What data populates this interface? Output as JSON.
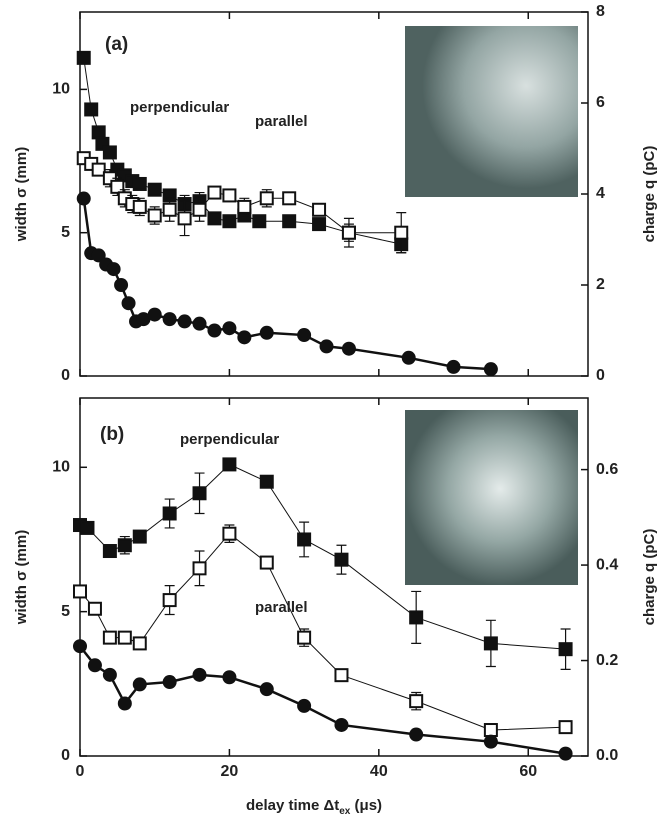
{
  "chart_data": [
    {
      "type": "line",
      "panel_label": "(a)",
      "xlim": [
        0,
        68
      ],
      "ylim": [
        0,
        12.7
      ],
      "yticks": [
        0,
        5,
        10
      ],
      "y2lim": [
        0,
        8
      ],
      "y2ticks": [
        0,
        2,
        4,
        6,
        8
      ],
      "y2label": "charge q (pC)",
      "ylabel": "width σ (mm)",
      "series": [
        {
          "name": "perpendicular",
          "color": "#111111",
          "marker": "filled-square",
          "x": [
            0.5,
            1.5,
            2.5,
            3,
            4,
            5,
            6,
            7,
            8,
            10,
            12,
            14,
            16,
            18,
            20,
            22,
            24,
            28,
            32,
            36,
            43
          ],
          "values": [
            11.1,
            9.3,
            8.5,
            8.1,
            7.8,
            7.2,
            7.0,
            6.8,
            6.7,
            6.5,
            6.3,
            6.0,
            6.1,
            5.5,
            5.4,
            5.6,
            5.4,
            5.4,
            5.3,
            5.0,
            4.6
          ],
          "errors": [
            0.2,
            0.2,
            0.2,
            0.2,
            0.2,
            0.2,
            0.2,
            0.2,
            0.2,
            0.2,
            0.2,
            0.3,
            0.3,
            0.2,
            0.2,
            0.2,
            0.2,
            0.2,
            0.2,
            0.3,
            0.3
          ]
        },
        {
          "name": "parallel",
          "color": "#111111",
          "marker": "open-square",
          "x": [
            0.5,
            1.5,
            2.5,
            4,
            5,
            6,
            7,
            8,
            10,
            12,
            14,
            16,
            18,
            20,
            22,
            25,
            28,
            32,
            36,
            43
          ],
          "values": [
            7.6,
            7.4,
            7.2,
            6.9,
            6.6,
            6.2,
            6.0,
            5.9,
            5.6,
            5.8,
            5.5,
            5.8,
            6.4,
            6.3,
            5.9,
            6.2,
            6.2,
            5.8,
            5.0,
            5.0
          ],
          "errors": [
            0.2,
            0.2,
            0.2,
            0.3,
            0.3,
            0.3,
            0.3,
            0.3,
            0.3,
            0.4,
            0.6,
            0.4,
            0.2,
            0.2,
            0.3,
            0.3,
            0.2,
            0.2,
            0.5,
            0.7
          ]
        },
        {
          "color": "#111111",
          "marker": "filled-circle",
          "axis": "y2",
          "x": [
            0.5,
            1.5,
            2.5,
            3.5,
            4.5,
            5.5,
            6.5,
            7.5,
            8.5,
            10,
            12,
            14,
            16,
            18,
            20,
            22,
            25,
            30,
            33,
            36,
            44,
            50,
            55
          ],
          "values": [
            3.9,
            2.7,
            2.65,
            2.45,
            2.35,
            2.0,
            1.6,
            1.2,
            1.25,
            1.35,
            1.25,
            1.2,
            1.15,
            1.0,
            1.05,
            0.85,
            0.95,
            0.9,
            0.65,
            0.6,
            0.4,
            0.2,
            0.15
          ]
        }
      ]
    },
    {
      "type": "line",
      "panel_label": "(b)",
      "xlim": [
        0,
        68
      ],
      "xticks": [
        0,
        20,
        40,
        60
      ],
      "xlabel": {
        "main": "delay time Δt",
        "sub": "ex",
        "unit": " (μs)"
      },
      "ylim": [
        0,
        12.4
      ],
      "yticks": [
        0,
        5,
        10
      ],
      "y2lim": [
        0,
        0.75
      ],
      "y2ticks": [
        {
          "value": 0,
          "label": "0.0"
        },
        0.2,
        0.4,
        0.6
      ],
      "y2label": "charge q (pC)",
      "ylabel": "width σ (mm)",
      "series": [
        {
          "name": "perpendicular",
          "color": "#111111",
          "marker": "filled-square",
          "x": [
            0,
            1,
            4,
            6,
            8,
            12,
            16,
            20,
            25,
            30,
            35,
            45,
            55,
            65
          ],
          "values": [
            8.0,
            7.9,
            7.1,
            7.3,
            7.6,
            8.4,
            9.1,
            10.1,
            9.5,
            7.5,
            6.8,
            4.8,
            3.9,
            3.7
          ],
          "errors": [
            0.1,
            0.1,
            0.2,
            0.3,
            0.2,
            0.5,
            0.7,
            0.2,
            0.2,
            0.6,
            0.5,
            0.9,
            0.8,
            0.7
          ]
        },
        {
          "name": "parallel",
          "color": "#111111",
          "marker": "open-square",
          "x": [
            0,
            2,
            4,
            6,
            8,
            12,
            16,
            20,
            25,
            30,
            35,
            45,
            55,
            65
          ],
          "values": [
            5.7,
            5.1,
            4.1,
            4.1,
            3.9,
            5.4,
            6.5,
            7.7,
            6.7,
            4.1,
            2.8,
            1.9,
            0.9,
            1.0
          ],
          "errors": [
            0.1,
            0.1,
            0.1,
            0.1,
            0.1,
            0.5,
            0.6,
            0.3,
            0.2,
            0.3,
            0.2,
            0.3,
            0.1,
            0.1
          ]
        },
        {
          "color": "#111111",
          "marker": "filled-circle",
          "axis": "y2",
          "x": [
            0,
            2,
            4,
            6,
            8,
            12,
            16,
            20,
            25,
            30,
            35,
            45,
            55,
            65
          ],
          "values": [
            0.23,
            0.19,
            0.17,
            0.11,
            0.15,
            0.155,
            0.17,
            0.165,
            0.14,
            0.105,
            0.065,
            0.045,
            0.03,
            0.005
          ]
        }
      ]
    }
  ]
}
